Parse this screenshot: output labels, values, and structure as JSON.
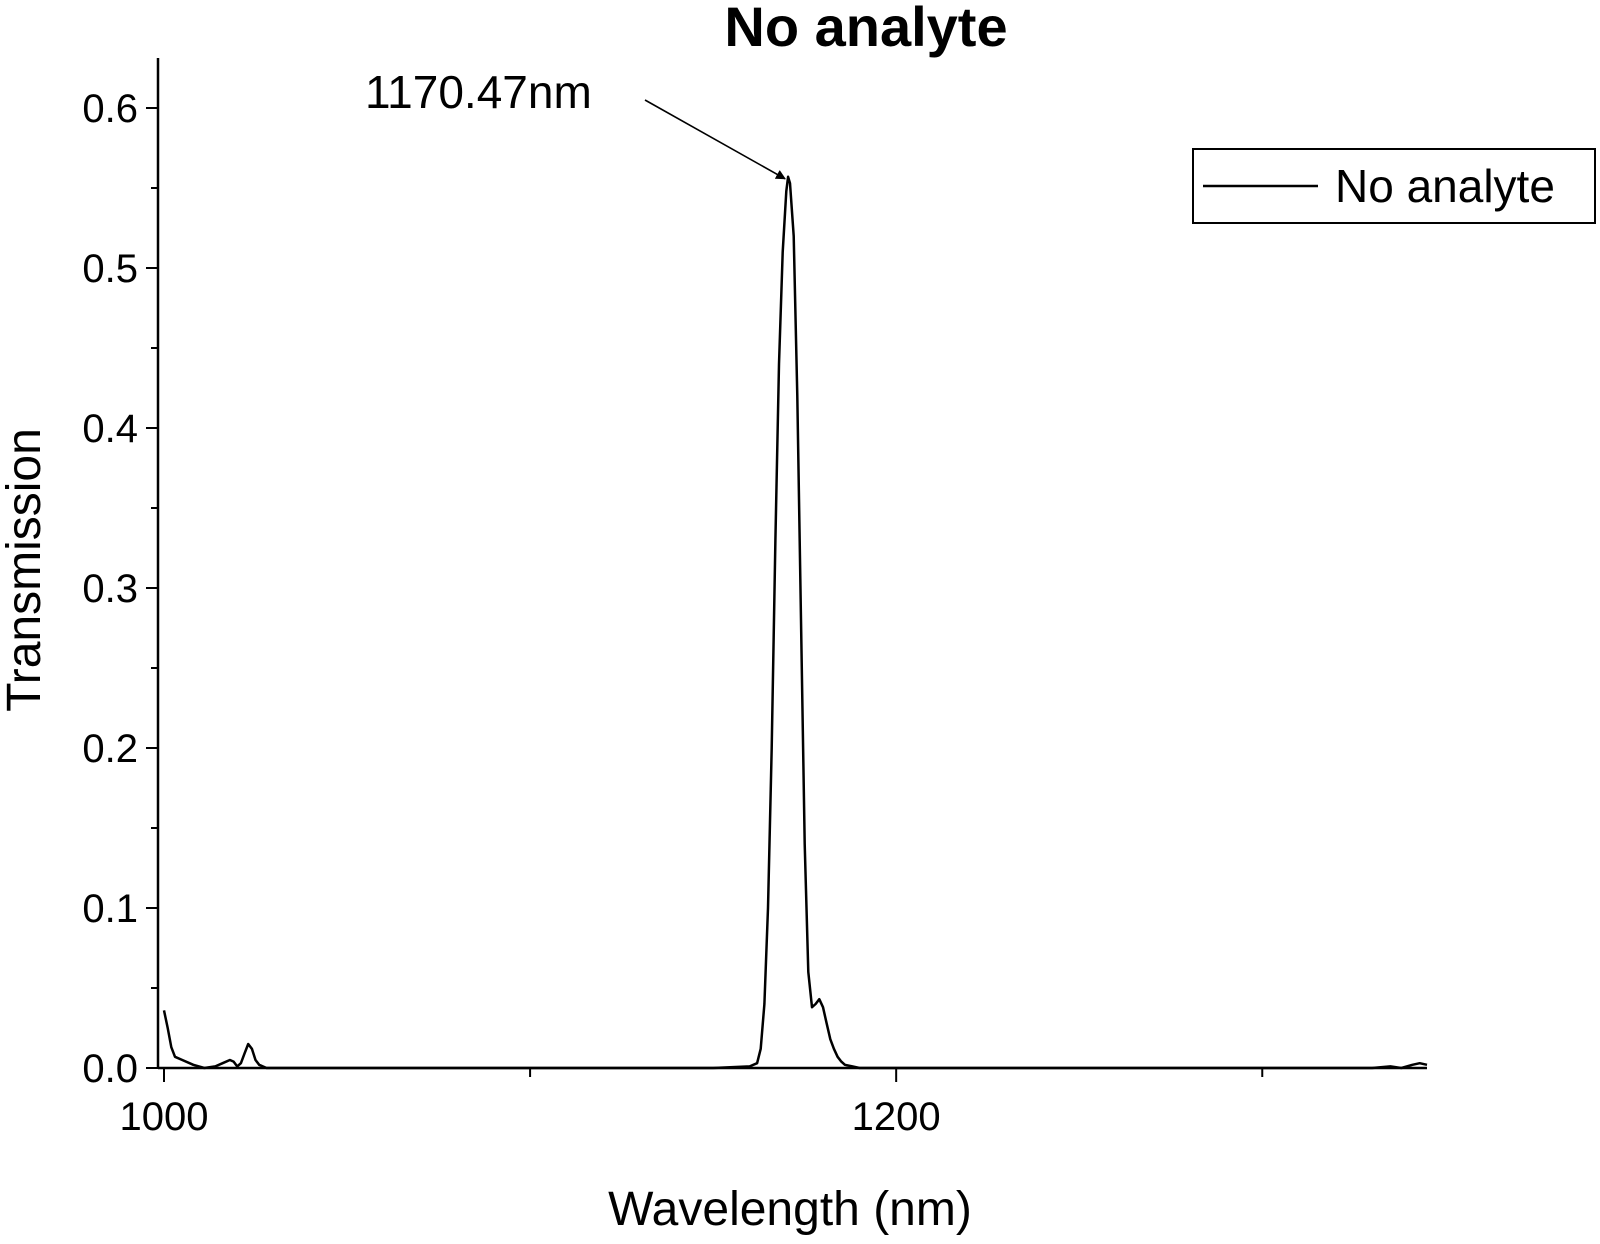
{
  "chart_data": {
    "type": "line",
    "title": "No analyte",
    "xlabel": "Wavelength (nm)",
    "ylabel": "Transmission",
    "xlim": [
      1000,
      1345
    ],
    "ylim": [
      0.0,
      0.63
    ],
    "x_ticks": [
      1000,
      1200
    ],
    "x_tick_labels": [
      "1000",
      "1200"
    ],
    "x_minor_ticks": [
      1100,
      1300
    ],
    "y_ticks": [
      0.0,
      0.1,
      0.2,
      0.3,
      0.4,
      0.5,
      0.6
    ],
    "y_tick_labels": [
      "0.0",
      "0.1",
      "0.2",
      "0.3",
      "0.4",
      "0.5",
      "0.6"
    ],
    "grid": false,
    "legend": {
      "position": "top-right",
      "entries": [
        "No analyte"
      ]
    },
    "annotation": {
      "text": "1170.47nm",
      "x": 1170.47,
      "y": 0.557
    },
    "series": [
      {
        "name": "No analyte",
        "color": "#000000",
        "x": [
          1000,
          1001,
          1002,
          1003,
          1005,
          1008,
          1011,
          1014,
          1016,
          1018,
          1019,
          1020,
          1021,
          1022,
          1023,
          1024,
          1025,
          1026,
          1027,
          1028,
          1030,
          1040,
          1060,
          1100,
          1150,
          1160,
          1162,
          1163,
          1164,
          1165,
          1166,
          1167,
          1168,
          1169,
          1170,
          1170.47,
          1171,
          1172,
          1173,
          1174,
          1175,
          1176,
          1177,
          1178,
          1179,
          1180,
          1181,
          1182,
          1183,
          1184,
          1185,
          1186,
          1188,
          1190,
          1195,
          1200,
          1250,
          1300,
          1330,
          1335,
          1338,
          1341,
          1343,
          1345
        ],
        "y": [
          0.036,
          0.025,
          0.013,
          0.007,
          0.005,
          0.002,
          0.0,
          0.001,
          0.003,
          0.005,
          0.004,
          0.001,
          0.003,
          0.009,
          0.015,
          0.012,
          0.005,
          0.002,
          0.001,
          0.0,
          0.0,
          0.0,
          0.0,
          0.0,
          0.0,
          0.001,
          0.003,
          0.012,
          0.04,
          0.1,
          0.2,
          0.33,
          0.44,
          0.51,
          0.548,
          0.557,
          0.553,
          0.52,
          0.42,
          0.28,
          0.14,
          0.06,
          0.038,
          0.04,
          0.043,
          0.038,
          0.028,
          0.018,
          0.012,
          0.007,
          0.004,
          0.002,
          0.001,
          0.0,
          0.0,
          0.0,
          0.0,
          0.0,
          0.0,
          0.001,
          0.0,
          0.002,
          0.003,
          0.002
        ]
      }
    ]
  }
}
